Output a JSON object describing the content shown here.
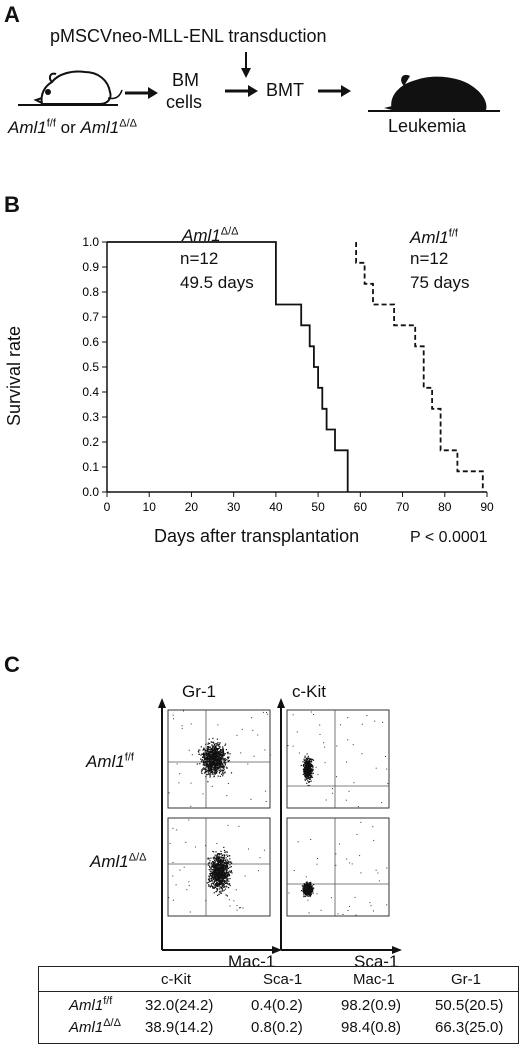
{
  "panel_a": {
    "label": "A",
    "transduction": "pMSCVneo-MLL-ENL transduction",
    "bm_line1": "BM",
    "bm_line2": "cells",
    "bmt": "BMT",
    "leukemia": "Leukemia",
    "genotype_ff": "Aml1",
    "genotype_ff_sup": "f/f",
    "or_word": "or",
    "genotype_dd": "Aml1",
    "genotype_dd_sup": "Δ/Δ"
  },
  "panel_b": {
    "label": "B",
    "p_value": "P < 0.0001",
    "dd_label": "Aml1",
    "dd_sup": "Δ/Δ",
    "dd_n": "n=12",
    "dd_median": "49.5 days",
    "ff_label": "Aml1",
    "ff_sup": "f/f",
    "ff_n": "n=12",
    "ff_median": "75 days"
  },
  "chart_data": {
    "type": "line",
    "xlabel": "Days after transplantation",
    "ylabel": "Survival rate",
    "xlim": [
      0,
      90
    ],
    "ylim": [
      0,
      1.0
    ],
    "xticks": [
      "0",
      "10",
      "20",
      "30",
      "40",
      "50",
      "60",
      "70",
      "80",
      "90"
    ],
    "yticks": [
      "0.0",
      "0.1",
      "0.2",
      "0.3",
      "0.4",
      "0.5",
      "0.6",
      "0.7",
      "0.8",
      "0.9",
      "1.0"
    ],
    "series": [
      {
        "style": "solid",
        "x": [
          0,
          40,
          40,
          46,
          46,
          48,
          48,
          49,
          49,
          50,
          50,
          51,
          51,
          52,
          52,
          54,
          54,
          57,
          57
        ],
        "y": [
          1.0,
          1.0,
          0.75,
          0.75,
          0.667,
          0.667,
          0.583,
          0.583,
          0.5,
          0.5,
          0.417,
          0.417,
          0.333,
          0.333,
          0.25,
          0.25,
          0.167,
          0.167,
          0.0
        ]
      },
      {
        "style": "dashed",
        "x": [
          59,
          59,
          61,
          61,
          63,
          63,
          68,
          68,
          73,
          73,
          75,
          75,
          77,
          77,
          79,
          79,
          83,
          83,
          89,
          89
        ],
        "y": [
          1.0,
          0.917,
          0.917,
          0.833,
          0.833,
          0.75,
          0.75,
          0.667,
          0.667,
          0.583,
          0.583,
          0.417,
          0.417,
          0.333,
          0.333,
          0.167,
          0.167,
          0.083,
          0.083,
          0.0
        ]
      }
    ]
  },
  "panel_c": {
    "label": "C",
    "gr1": "Gr-1",
    "ckit": "c-Kit",
    "mac1": "Mac-1",
    "sca1": "Sca-1",
    "row_ff": "Aml1",
    "row_ff_sup": "f/f",
    "row_dd": "Aml1",
    "row_dd_sup": "Δ/Δ"
  },
  "table": {
    "headers": [
      "c-Kit",
      "Sca-1",
      "Mac-1",
      "Gr-1"
    ],
    "rows": [
      {
        "name": "Aml1",
        "sup": "f/f",
        "values": [
          "32.0(24.2)",
          "0.4(0.2)",
          "98.2(0.9)",
          "50.5(20.5)"
        ]
      },
      {
        "name": "Aml1",
        "sup": "Δ/Δ",
        "values": [
          "38.9(14.2)",
          "0.8(0.2)",
          "98.4(0.8)",
          "66.3(25.0)"
        ]
      }
    ]
  }
}
